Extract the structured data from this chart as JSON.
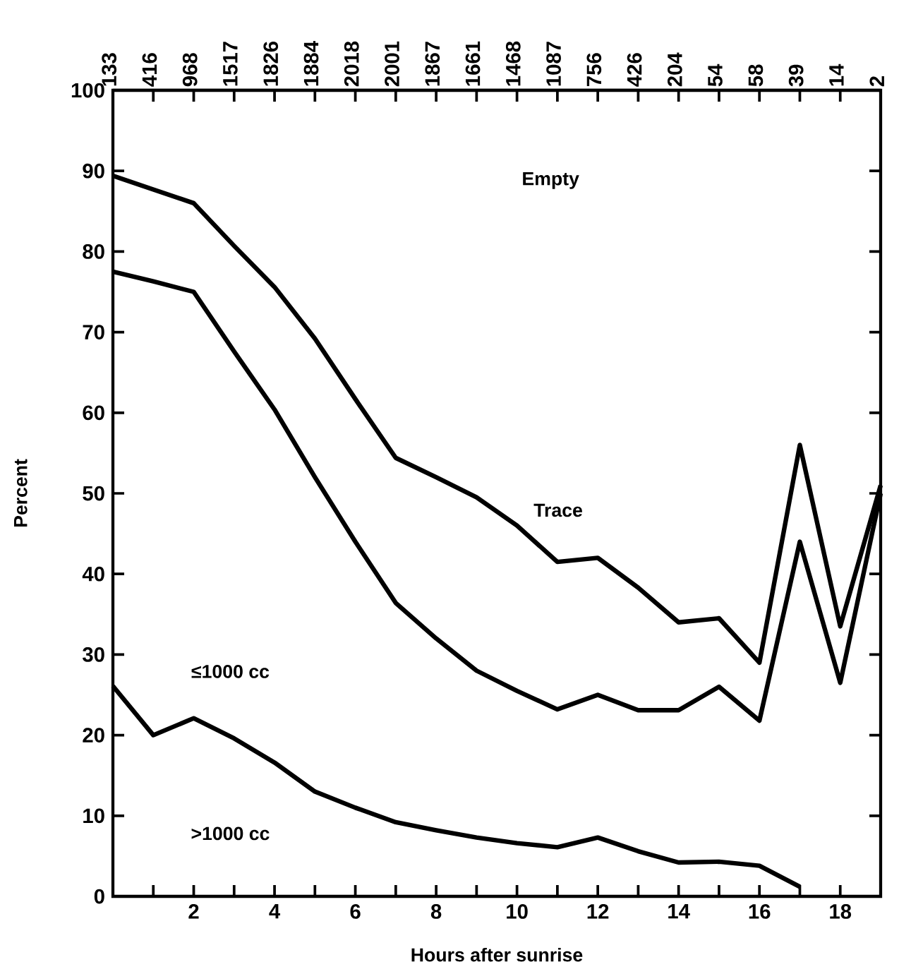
{
  "chart_data": {
    "type": "line",
    "xlabel": "Hours after sunrise",
    "ylabel": "Percent",
    "x": [
      0,
      1,
      2,
      3,
      4,
      5,
      6,
      7,
      8,
      9,
      10,
      11,
      12,
      13,
      14,
      15,
      16,
      17,
      18,
      19
    ],
    "series": [
      {
        "color": "#000000",
        "values": [
          89.4,
          87.7,
          86,
          80.7,
          75.6,
          69.2,
          61.7,
          54.4,
          52,
          49.5,
          46,
          41.5,
          42,
          38.3,
          34,
          34.5,
          29,
          56,
          33.5,
          51
        ]
      },
      {
        "color": "#000000",
        "values": [
          77.5,
          76.3,
          75,
          67.6,
          60.4,
          52,
          44,
          36.4,
          32,
          28,
          25.5,
          23.2,
          25,
          23.1,
          23.1,
          26,
          21.8,
          44,
          26.5,
          50
        ]
      },
      {
        "color": "#000000",
        "values": [
          26.1,
          20,
          22.1,
          19.6,
          16.6,
          13,
          11,
          9.2,
          8.2,
          7.3,
          6.6,
          6.1,
          7.3,
          5.6,
          4.2,
          4.3,
          3.8,
          1.2,
          null,
          null
        ]
      }
    ],
    "marker": "none",
    "xlim": [
      0,
      19
    ],
    "ylim": [
      0,
      100
    ],
    "xticks": [
      {
        "value": 1,
        "label": null
      },
      2,
      {
        "value": 3,
        "label": null
      },
      4,
      {
        "value": 5,
        "label": null
      },
      6,
      {
        "value": 7,
        "label": null
      },
      8,
      {
        "value": 9,
        "label": null
      },
      10,
      {
        "value": 11,
        "label": null
      },
      12,
      {
        "value": 13,
        "label": null
      },
      14,
      {
        "value": 15,
        "label": null
      },
      16,
      {
        "value": 17,
        "label": null
      },
      18
    ],
    "yticks": [
      0,
      10,
      20,
      30,
      40,
      50,
      60,
      70,
      80,
      90,
      100
    ],
    "annotations": [
      "Empty",
      "Trace",
      "≤1000 cc",
      ">1000 cc",
      "133",
      "416",
      "968",
      "1517",
      "1826",
      "1884",
      "2018",
      "2001",
      "1867",
      "1661",
      "1468",
      "1087",
      "756",
      "426",
      "204",
      "54",
      "58",
      "39",
      "14",
      "2"
    ]
  }
}
